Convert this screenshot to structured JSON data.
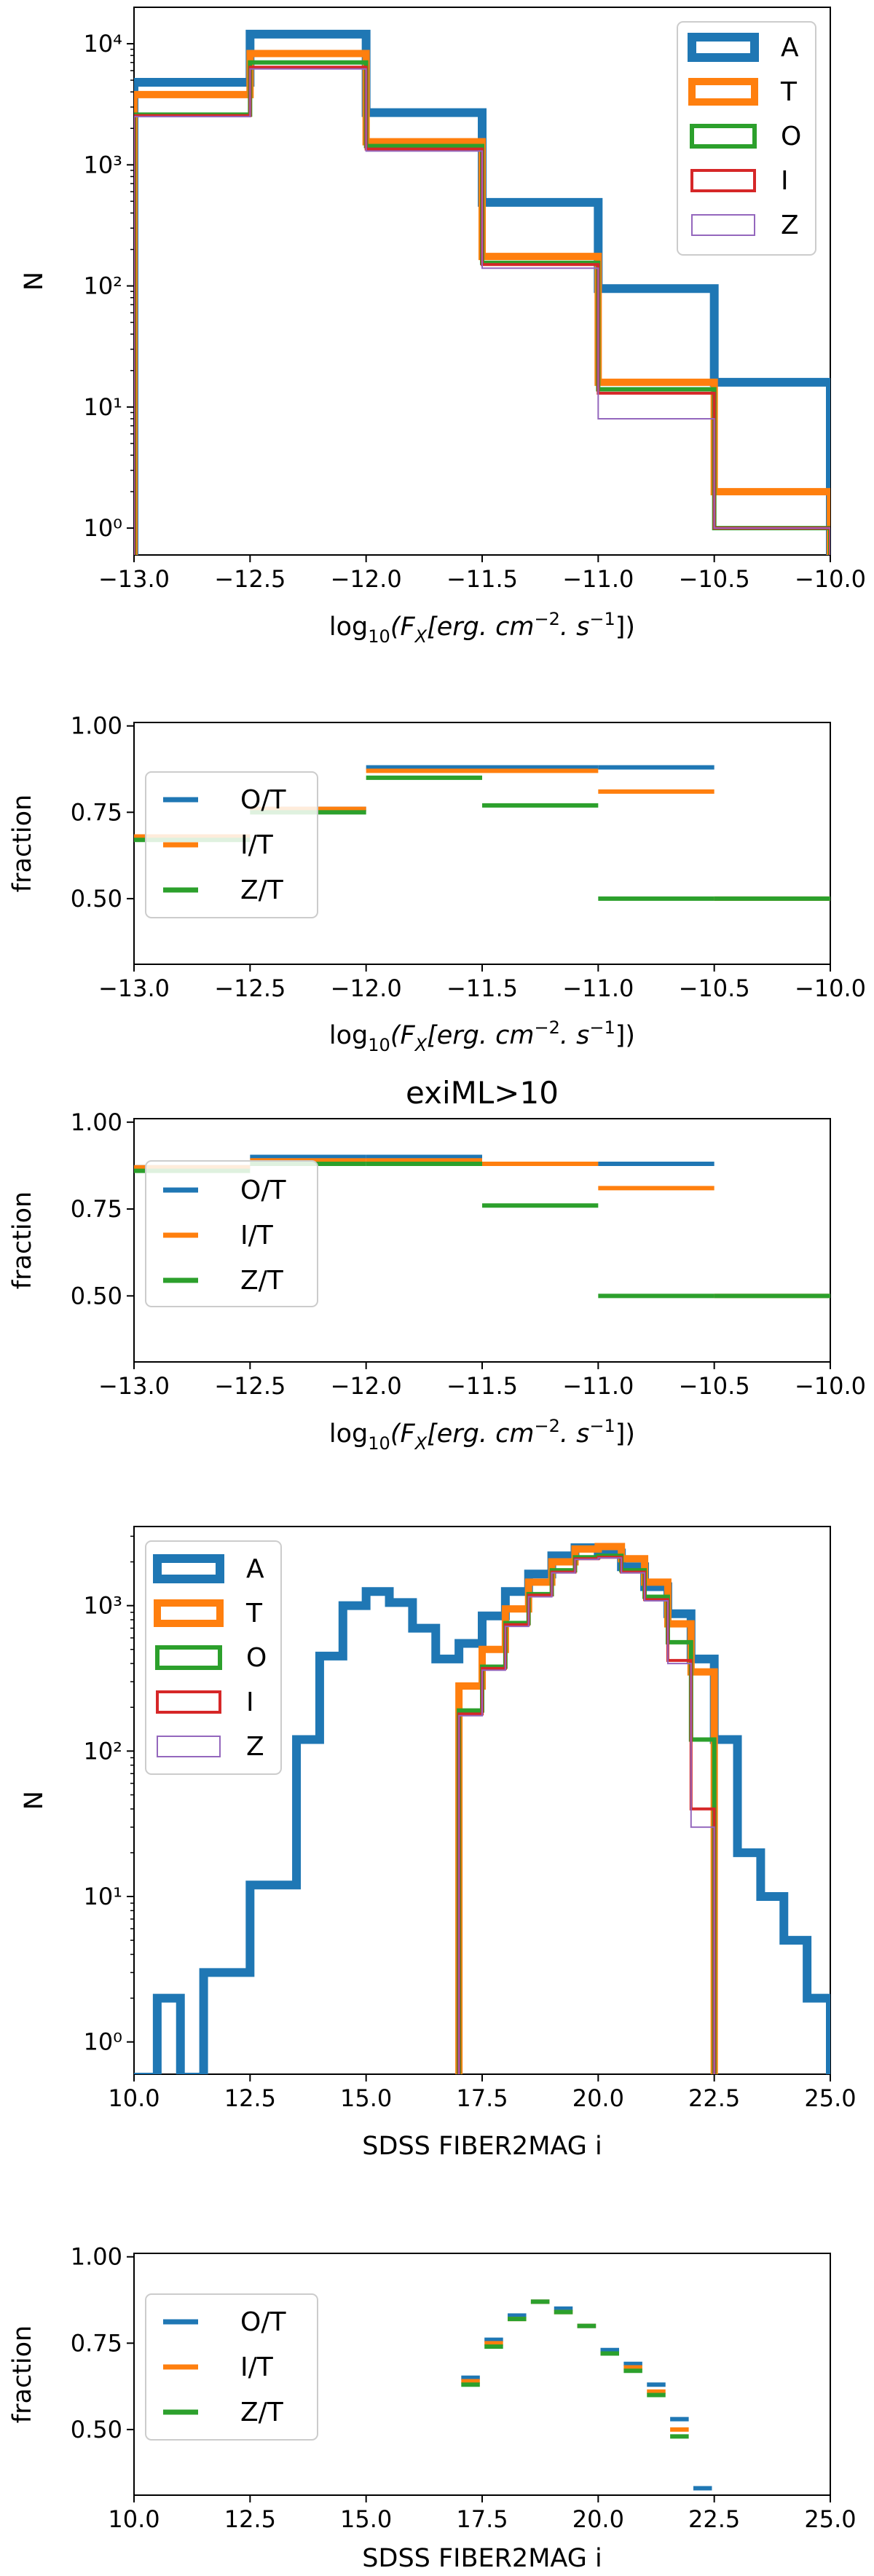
{
  "colors": {
    "A": "#1f77b4",
    "T": "#ff7f0e",
    "O": "#2ca02c",
    "I": "#d62728",
    "Z": "#9467bd"
  },
  "chart_data": [
    {
      "type": "histogram-step",
      "title": "",
      "xlabel_prefix": "log",
      "xlabel_sub": "10",
      "xlabel_math": "(F",
      "xlabel_math_sub": "X",
      "xlabel_rest": "[erg. cm",
      "xlabel_sup1": "−2",
      "xlabel_mid": ". s",
      "xlabel_sup2": "−1",
      "xlabel_end": "])",
      "ylabel": "N",
      "xlim": [
        -13.0,
        -10.0
      ],
      "ylim": [
        0.6,
        20000
      ],
      "yscale": "log",
      "x_ticks": [
        "−13.0",
        "−12.5",
        "−12.0",
        "−11.5",
        "−11.0",
        "−10.5",
        "−10.0"
      ],
      "y_ticks": [
        "10⁰",
        "10¹",
        "10²",
        "10³",
        "10⁴"
      ],
      "bin_edges": [
        -13.0,
        -12.5,
        -12.0,
        -11.5,
        -11.0,
        -10.5,
        -10.0
      ],
      "series": [
        {
          "name": "A",
          "values": [
            4800,
            12000,
            2700,
            490,
            95,
            16
          ]
        },
        {
          "name": "T",
          "values": [
            3800,
            8300,
            1550,
            175,
            16,
            2
          ]
        },
        {
          "name": "O",
          "values": [
            2600,
            7000,
            1430,
            155,
            14,
            1
          ]
        },
        {
          "name": "I",
          "values": [
            2550,
            6400,
            1350,
            150,
            13,
            1
          ]
        },
        {
          "name": "Z",
          "values": [
            2500,
            6200,
            1300,
            140,
            8,
            1
          ]
        }
      ],
      "legend": [
        "A",
        "T",
        "O",
        "I",
        "Z"
      ],
      "legend_position": "top-right"
    },
    {
      "type": "step-fraction",
      "title": "",
      "ylabel": "fraction",
      "xlim": [
        -13.0,
        -10.0
      ],
      "ylim": [
        0.31,
        1.01
      ],
      "x_ticks": [
        "−13.0",
        "−12.5",
        "−12.0",
        "−11.5",
        "−11.0",
        "−10.5",
        "−10.0"
      ],
      "y_ticks": [
        "0.50",
        "0.75",
        "1.00"
      ],
      "bin_edges": [
        -13.0,
        -12.5,
        -12.0,
        -11.5,
        -11.0,
        -10.5,
        -10.0
      ],
      "series": [
        {
          "name": "O/T",
          "values": [
            0.68,
            0.76,
            0.88,
            0.88,
            0.88,
            null
          ]
        },
        {
          "name": "I/T",
          "values": [
            0.68,
            0.76,
            0.87,
            0.87,
            0.81,
            0.5
          ]
        },
        {
          "name": "Z/T",
          "values": [
            0.67,
            0.75,
            0.85,
            0.77,
            0.5,
            0.5
          ]
        }
      ],
      "legend": [
        "O/T",
        "I/T",
        "Z/T"
      ],
      "legend_position": "center-left"
    },
    {
      "type": "step-fraction",
      "title": "exiML>10",
      "ylabel": "fraction",
      "xlim": [
        -13.0,
        -10.0
      ],
      "ylim": [
        0.31,
        1.01
      ],
      "x_ticks": [
        "−13.0",
        "−12.5",
        "−12.0",
        "−11.5",
        "−11.0",
        "−10.5",
        "−10.0"
      ],
      "y_ticks": [
        "0.50",
        "0.75",
        "1.00"
      ],
      "bin_edges": [
        -13.0,
        -12.5,
        -12.0,
        -11.5,
        -11.0,
        -10.5,
        -10.0
      ],
      "series": [
        {
          "name": "O/T",
          "values": [
            0.87,
            0.9,
            0.9,
            0.88,
            0.88,
            null
          ]
        },
        {
          "name": "I/T",
          "values": [
            0.87,
            0.89,
            0.89,
            0.88,
            0.81,
            0.5
          ]
        },
        {
          "name": "Z/T",
          "values": [
            0.86,
            0.88,
            0.88,
            0.76,
            0.5,
            0.5
          ]
        }
      ],
      "legend": [
        "O/T",
        "I/T",
        "Z/T"
      ],
      "legend_position": "center-left"
    },
    {
      "type": "histogram-step",
      "title": "",
      "xlabel": "SDSS FIBER2MAG i",
      "ylabel": "N",
      "xlim": [
        10.0,
        25.0
      ],
      "ylim": [
        0.6,
        3500
      ],
      "yscale": "log",
      "x_ticks": [
        "10.0",
        "12.5",
        "15.0",
        "17.5",
        "20.0",
        "22.5",
        "25.0"
      ],
      "y_ticks": [
        "10⁰",
        "10¹",
        "10²",
        "10³"
      ],
      "bin_width": 0.5,
      "series": [
        {
          "name": "A",
          "x0": 10.0,
          "values": [
            0,
            2,
            0,
            3,
            3,
            12,
            12,
            120,
            450,
            1000,
            1250,
            1050,
            700,
            430,
            550,
            850,
            1250,
            1650,
            2200,
            2500,
            2300,
            1850,
            1350,
            880,
            430,
            120,
            20,
            10,
            5,
            2
          ]
        },
        {
          "name": "T",
          "x0": 17.0,
          "values": [
            280,
            500,
            950,
            1450,
            2000,
            2450,
            2550,
            2100,
            1450,
            750,
            350
          ]
        },
        {
          "name": "O",
          "x0": 17.0,
          "values": [
            190,
            380,
            760,
            1200,
            1750,
            2150,
            2200,
            1750,
            1150,
            560,
            120
          ]
        },
        {
          "name": "I",
          "x0": 17.0,
          "values": [
            180,
            370,
            740,
            1180,
            1700,
            2100,
            2150,
            1700,
            1100,
            420,
            40
          ]
        },
        {
          "name": "Z",
          "x0": 17.0,
          "values": [
            175,
            360,
            720,
            1150,
            1680,
            2080,
            2130,
            1680,
            1080,
            400,
            30
          ]
        }
      ],
      "legend": [
        "A",
        "T",
        "O",
        "I",
        "Z"
      ],
      "legend_position": "top-left"
    },
    {
      "type": "step-fraction",
      "title": "",
      "xlabel": "SDSS FIBER2MAG i",
      "ylabel": "fraction",
      "xlim": [
        10.0,
        25.0
      ],
      "ylim": [
        0.31,
        1.01
      ],
      "x_ticks": [
        "10.0",
        "12.5",
        "15.0",
        "17.5",
        "20.0",
        "22.5",
        "25.0"
      ],
      "y_ticks": [
        "0.50",
        "0.75",
        "1.00"
      ],
      "bin_width": 0.5,
      "x0": 17.0,
      "series": [
        {
          "name": "O/T",
          "values": [
            0.65,
            0.76,
            0.83,
            0.87,
            0.85,
            0.8,
            0.73,
            0.69,
            0.63,
            0.53,
            0.33
          ]
        },
        {
          "name": "I/T",
          "values": [
            0.64,
            0.75,
            0.82,
            0.87,
            0.84,
            0.8,
            0.72,
            0.68,
            0.61,
            0.5,
            null
          ]
        },
        {
          "name": "Z/T",
          "values": [
            0.63,
            0.74,
            0.82,
            0.87,
            0.84,
            0.8,
            0.72,
            0.67,
            0.6,
            0.48,
            null
          ]
        }
      ],
      "legend": [
        "O/T",
        "I/T",
        "Z/T"
      ],
      "legend_position": "center-left"
    }
  ]
}
